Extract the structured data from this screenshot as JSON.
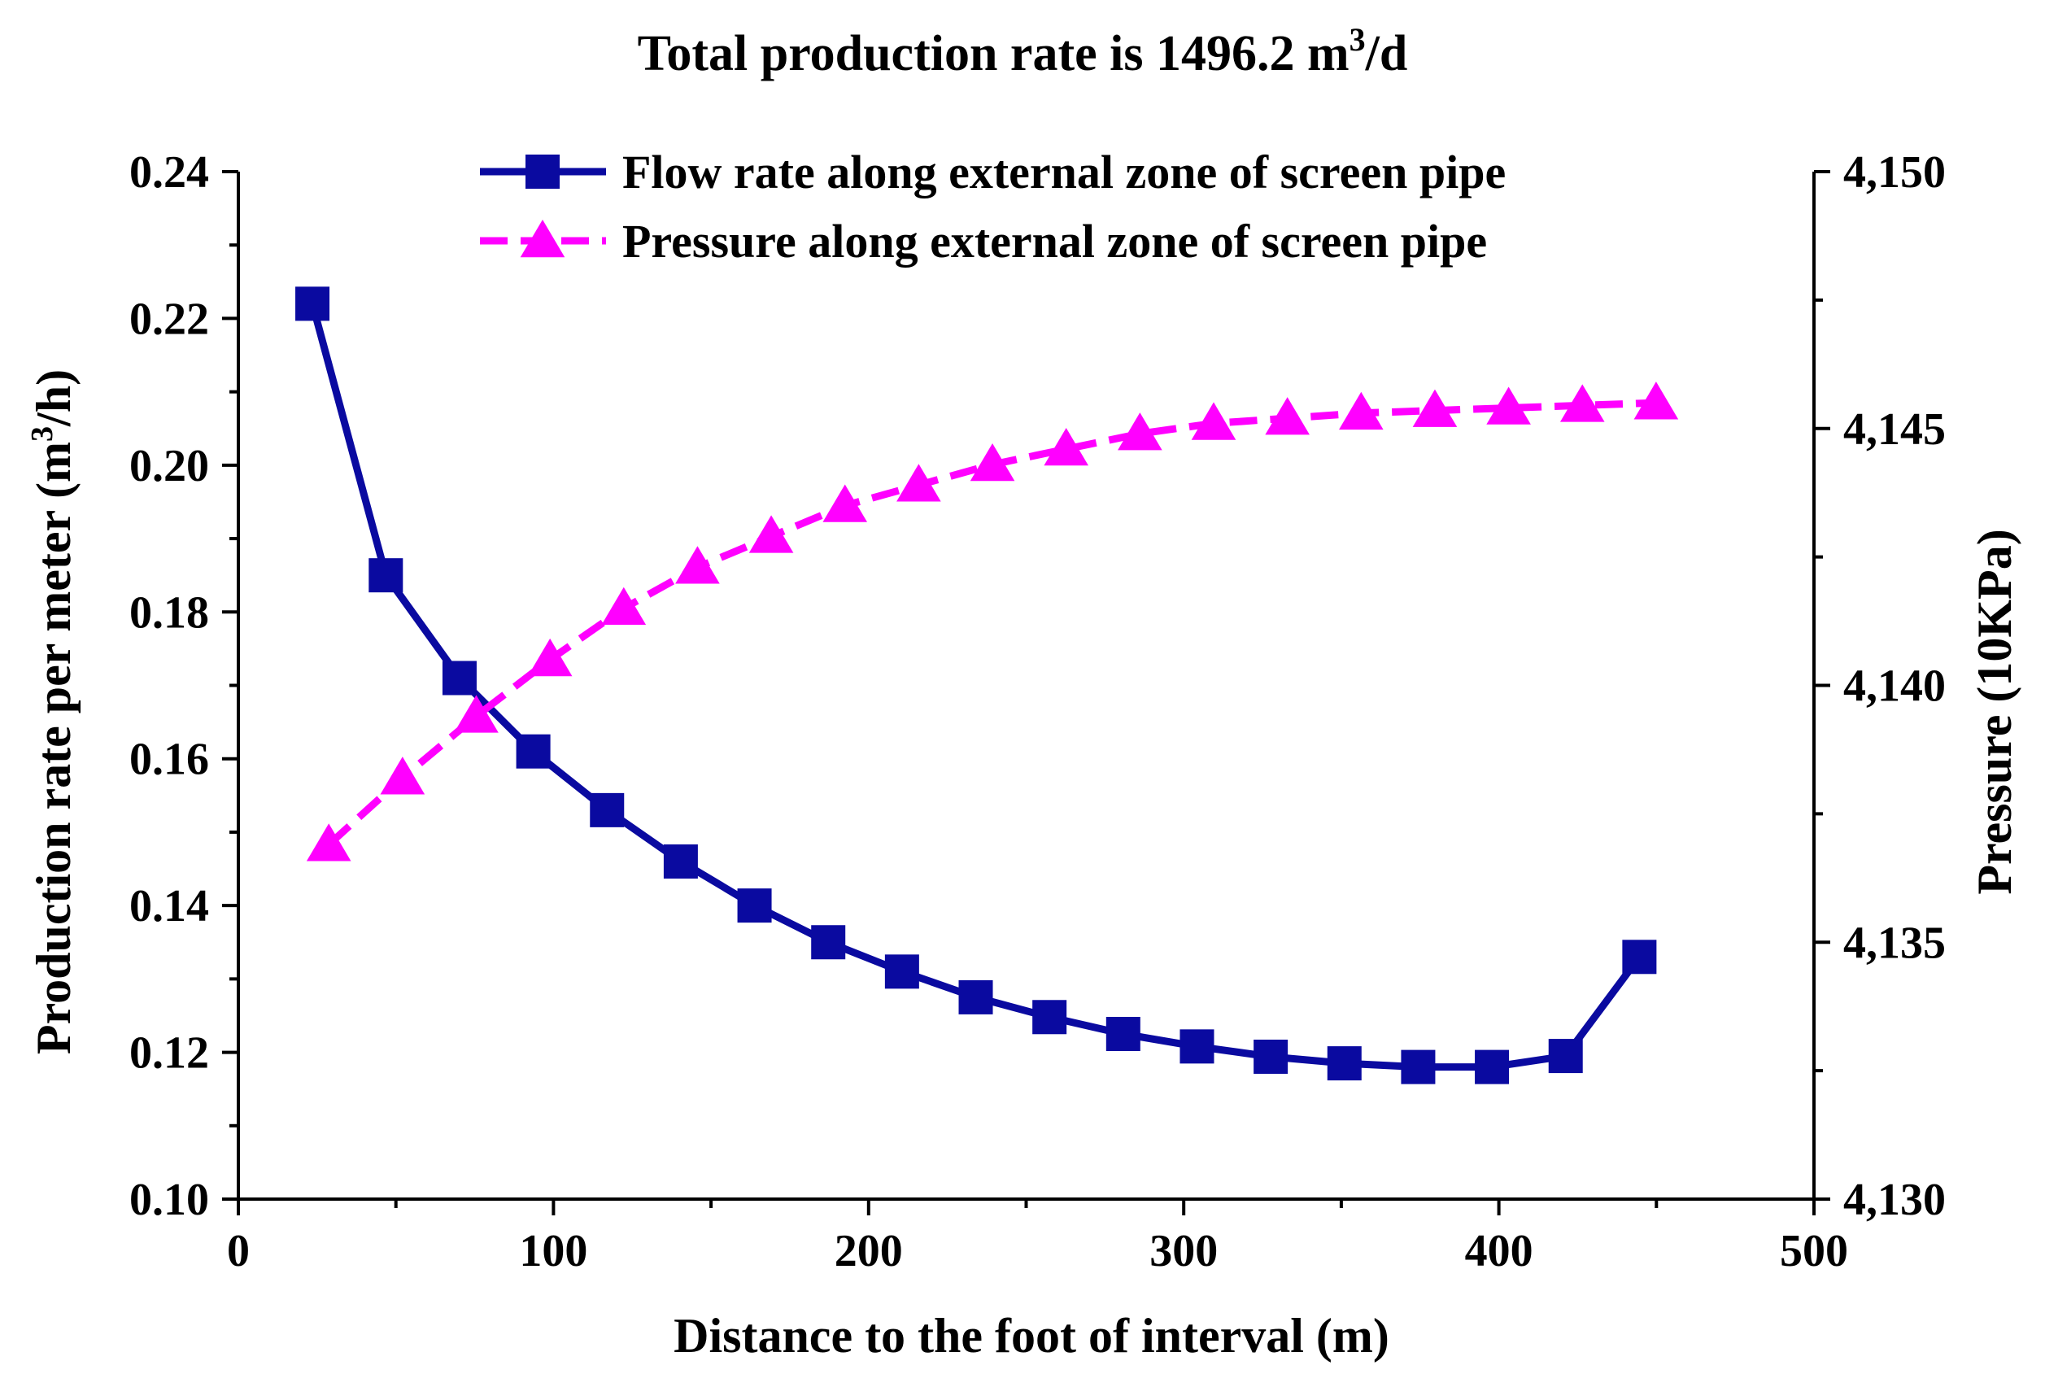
{
  "chart_data": {
    "type": "line",
    "title": {
      "prefix": "Total production rate is 1496.2 m",
      "superscript": "3",
      "suffix": "/d"
    },
    "xlabel": "Distance to the foot of interval (m)",
    "ylabel": {
      "prefix": "Production rate per meter (m",
      "superscript": "3",
      "suffix": "/h)"
    },
    "y2label": "Pressure (10KPa)",
    "xlim": [
      0,
      500
    ],
    "ylim": [
      0.1,
      0.24
    ],
    "y2lim": [
      4130,
      4150
    ],
    "x_ticks": [
      "0",
      "100",
      "200",
      "300",
      "400",
      "500"
    ],
    "y_ticks": [
      "0.10",
      "0.12",
      "0.14",
      "0.16",
      "0.18",
      "0.20",
      "0.22",
      "0.24"
    ],
    "y2_ticks": [
      "4,130",
      "4,135",
      "4,140",
      "4,145",
      "4,150"
    ],
    "legend_position": "top-center",
    "series": [
      {
        "name": "Flow rate along external zone of screen pipe",
        "axis": "left",
        "marker": "square",
        "color": "#0A0AA0",
        "x": [
          23.5,
          46.8,
          70.2,
          93.6,
          117.0,
          140.4,
          163.8,
          187.2,
          210.6,
          234.0,
          257.4,
          280.8,
          304.2,
          327.6,
          351.0,
          374.4,
          397.8,
          421.2,
          444.6
        ],
        "values": [
          0.222,
          0.185,
          0.171,
          0.161,
          0.153,
          0.146,
          0.14,
          0.135,
          0.131,
          0.1275,
          0.1248,
          0.1225,
          0.1208,
          0.1194,
          0.1185,
          0.118,
          0.118,
          0.1195,
          0.133
        ]
      },
      {
        "name": "Pressure along external zone of screen pipe",
        "axis": "right",
        "marker": "triangle",
        "color": "#FF00FF",
        "x": [
          28.7,
          52.1,
          75.5,
          98.9,
          122.3,
          145.7,
          169.1,
          192.5,
          215.9,
          239.3,
          262.7,
          286.1,
          309.5,
          332.9,
          356.3,
          379.7,
          403.1,
          426.5,
          449.9
        ],
        "values": [
          4136.9,
          4138.2,
          4139.4,
          4140.5,
          4141.5,
          4142.3,
          4142.9,
          4143.5,
          4143.9,
          4144.3,
          4144.6,
          4144.9,
          4145.1,
          4145.2,
          4145.3,
          4145.35,
          4145.4,
          4145.45,
          4145.5
        ]
      }
    ]
  }
}
